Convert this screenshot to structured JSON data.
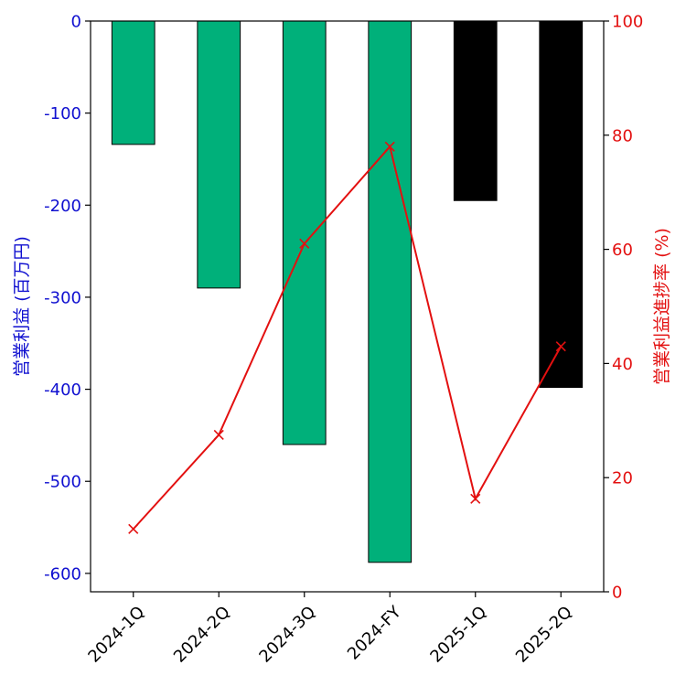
{
  "chart_data": {
    "type": "bar",
    "categories": [
      "2024-1Q",
      "2024-2Q",
      "2024-3Q",
      "2024-FY",
      "2025-1Q",
      "2025-2Q"
    ],
    "series": [
      {
        "values": [
          -134,
          -290,
          -460,
          -588,
          -195,
          -398
        ],
        "colors": [
          "#00b07a",
          "#00b07a",
          "#00b07a",
          "#00b07a",
          "#000000",
          "#000000"
        ],
        "axis": "left"
      },
      {
        "type": "line",
        "values": [
          11,
          27.5,
          61,
          78,
          16.3,
          43
        ],
        "color": "#e31010",
        "marker": "x",
        "axis": "right"
      }
    ],
    "ylabel": "営業利益 (百万円)",
    "ylabel_right": "営業利益進捗率 (%)",
    "ylim": [
      -620,
      0
    ],
    "ylim_right": [
      0,
      100
    ],
    "yticks": [
      0,
      -100,
      -200,
      -300,
      -400,
      -500,
      -600
    ],
    "yticks_right": [
      0,
      20,
      40,
      60,
      80,
      100
    ],
    "left_axis_color": "#1010d0",
    "right_axis_color": "#e31010",
    "grid": false
  }
}
